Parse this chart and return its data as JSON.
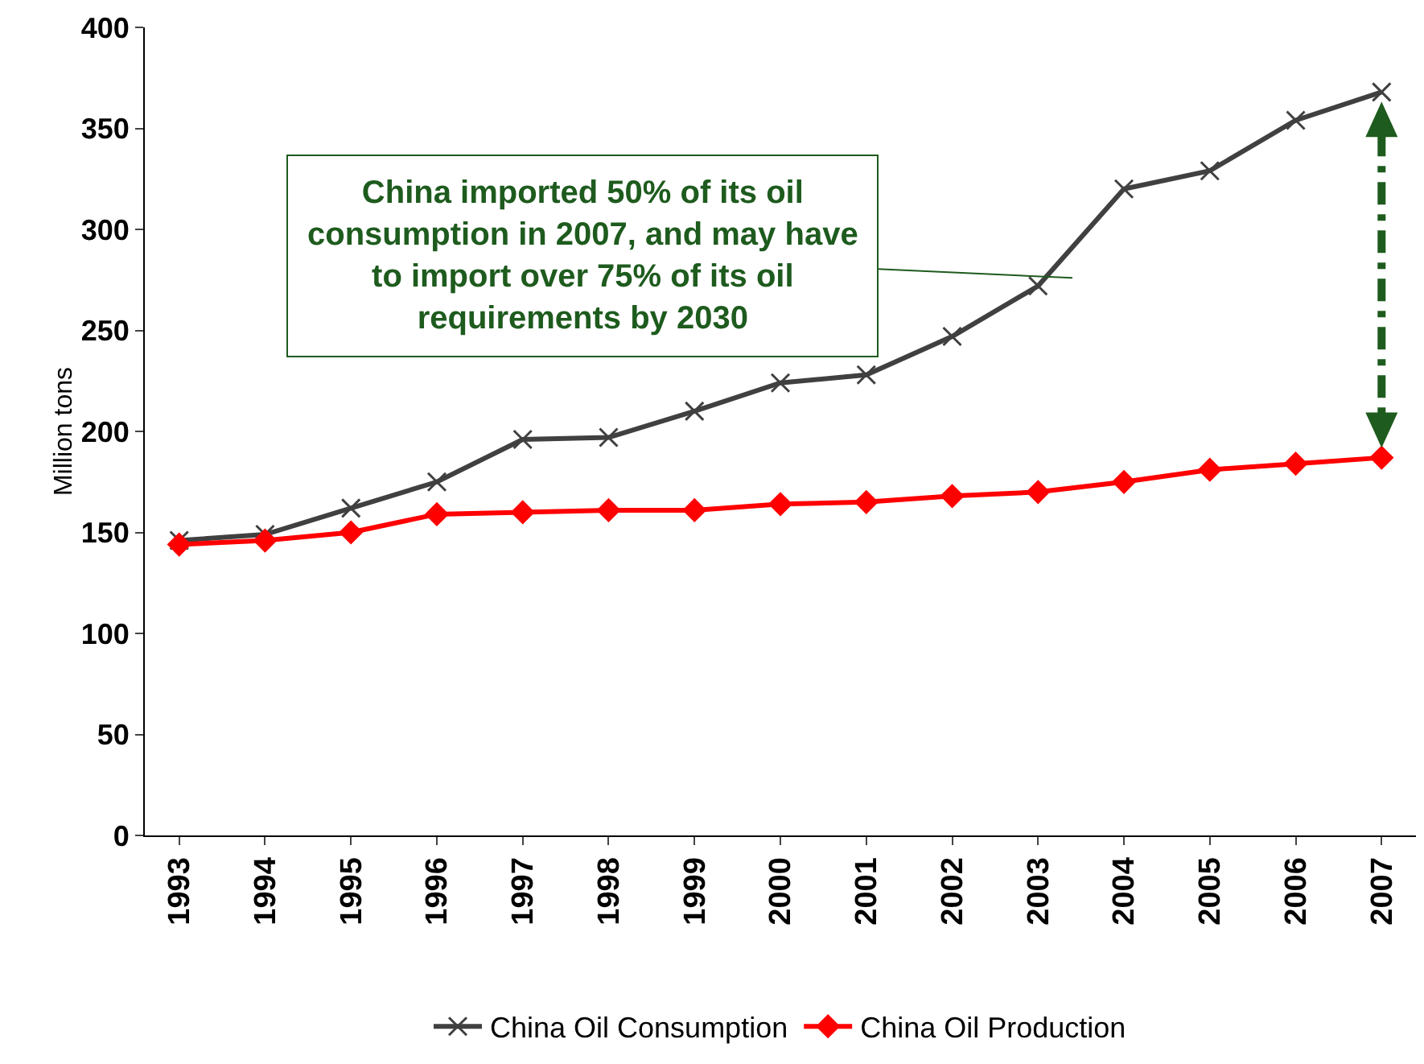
{
  "chart_data": {
    "type": "line",
    "ylabel": "Million tons",
    "categories": [
      "1993",
      "1994",
      "1995",
      "1996",
      "1997",
      "1998",
      "1999",
      "2000",
      "2001",
      "2002",
      "2003",
      "2004",
      "2005",
      "2006",
      "2007"
    ],
    "series": [
      {
        "name": "China Oil Consumption",
        "color": "#404040",
        "marker": "cross",
        "values": [
          146,
          149,
          162,
          175,
          196,
          197,
          210,
          224,
          228,
          247,
          272,
          320,
          329,
          354,
          368
        ]
      },
      {
        "name": "China Oil Production",
        "color": "#ff0000",
        "marker": "diamond",
        "values": [
          144,
          146,
          150,
          159,
          160,
          161,
          161,
          164,
          165,
          168,
          170,
          175,
          181,
          184,
          187
        ]
      }
    ],
    "ylim": [
      0,
      400
    ],
    "yticks": [
      0,
      50,
      100,
      150,
      200,
      250,
      300,
      350,
      400
    ],
    "grid": false,
    "legend": "bottom",
    "annotations": [
      "China imported 50% of its oil consumption in 2007, and may have to import over 75% of its oil requirements by 2030"
    ]
  }
}
